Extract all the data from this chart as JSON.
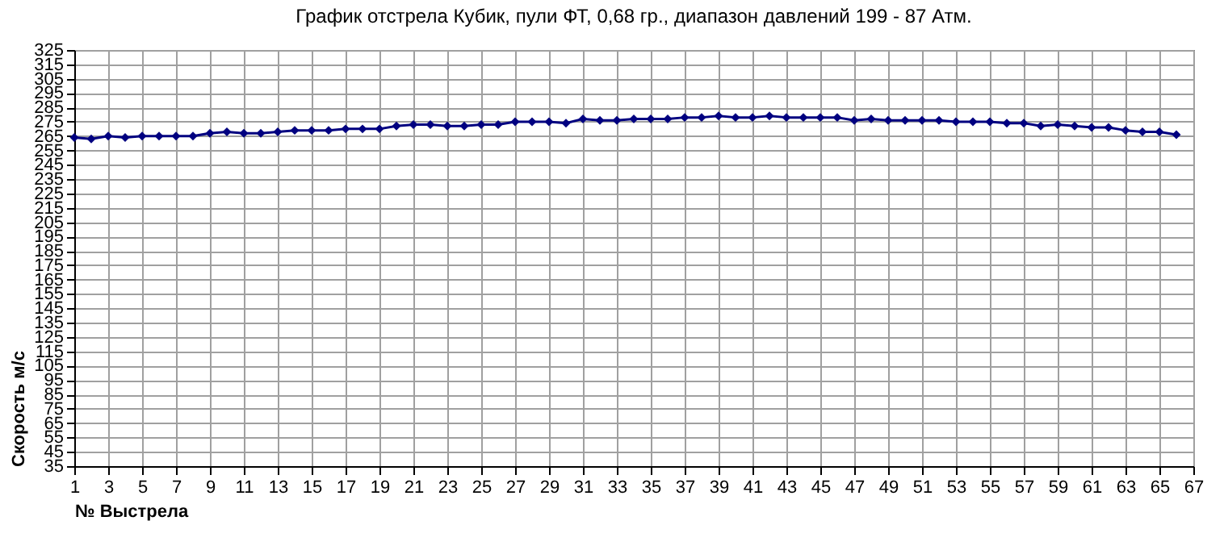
{
  "chart_data": {
    "type": "line",
    "title": "График отстрела Кубик, пули ФТ, 0,68 гр., диапазон давлений 199 - 87 Атм.",
    "xlabel": "№ Выстрела",
    "ylabel": "Скорость м/с",
    "x": [
      1,
      2,
      3,
      4,
      5,
      6,
      7,
      8,
      9,
      10,
      11,
      12,
      13,
      14,
      15,
      16,
      17,
      18,
      19,
      20,
      21,
      22,
      23,
      24,
      25,
      26,
      27,
      28,
      29,
      30,
      31,
      32,
      33,
      34,
      35,
      36,
      37,
      38,
      39,
      40,
      41,
      42,
      43,
      44,
      45,
      46,
      47,
      48,
      49,
      50,
      51,
      52,
      53,
      54,
      55,
      56,
      57,
      58,
      59,
      60,
      61,
      62,
      63,
      64,
      65,
      66
    ],
    "series": [
      {
        "color": "#000080",
        "values": [
          264,
          263,
          265,
          264,
          265,
          265,
          265,
          265,
          267,
          268,
          267,
          267,
          268,
          269,
          269,
          269,
          270,
          270,
          270,
          272,
          273,
          273,
          272,
          272,
          273,
          273,
          275,
          275,
          275,
          274,
          277,
          276,
          276,
          277,
          277,
          277,
          278,
          278,
          279,
          278,
          278,
          279,
          278,
          278,
          278,
          278,
          276,
          277,
          276,
          276,
          276,
          276,
          275,
          275,
          275,
          274,
          274,
          272,
          273,
          272,
          271,
          271,
          269,
          268,
          268,
          266
        ]
      }
    ],
    "xlim": [
      1,
      67
    ],
    "xticks": [
      1,
      3,
      5,
      7,
      9,
      11,
      13,
      15,
      17,
      19,
      21,
      23,
      25,
      27,
      29,
      31,
      33,
      35,
      37,
      39,
      41,
      43,
      45,
      47,
      49,
      51,
      53,
      55,
      57,
      59,
      61,
      63,
      65,
      67
    ],
    "ylim": [
      35,
      325
    ],
    "yticks": [
      35,
      45,
      55,
      65,
      75,
      85,
      95,
      105,
      115,
      125,
      135,
      145,
      155,
      165,
      175,
      185,
      195,
      205,
      215,
      225,
      235,
      245,
      255,
      265,
      275,
      285,
      295,
      305,
      315,
      325
    ],
    "grid": true,
    "marker": "diamond",
    "line_style": "solid"
  }
}
